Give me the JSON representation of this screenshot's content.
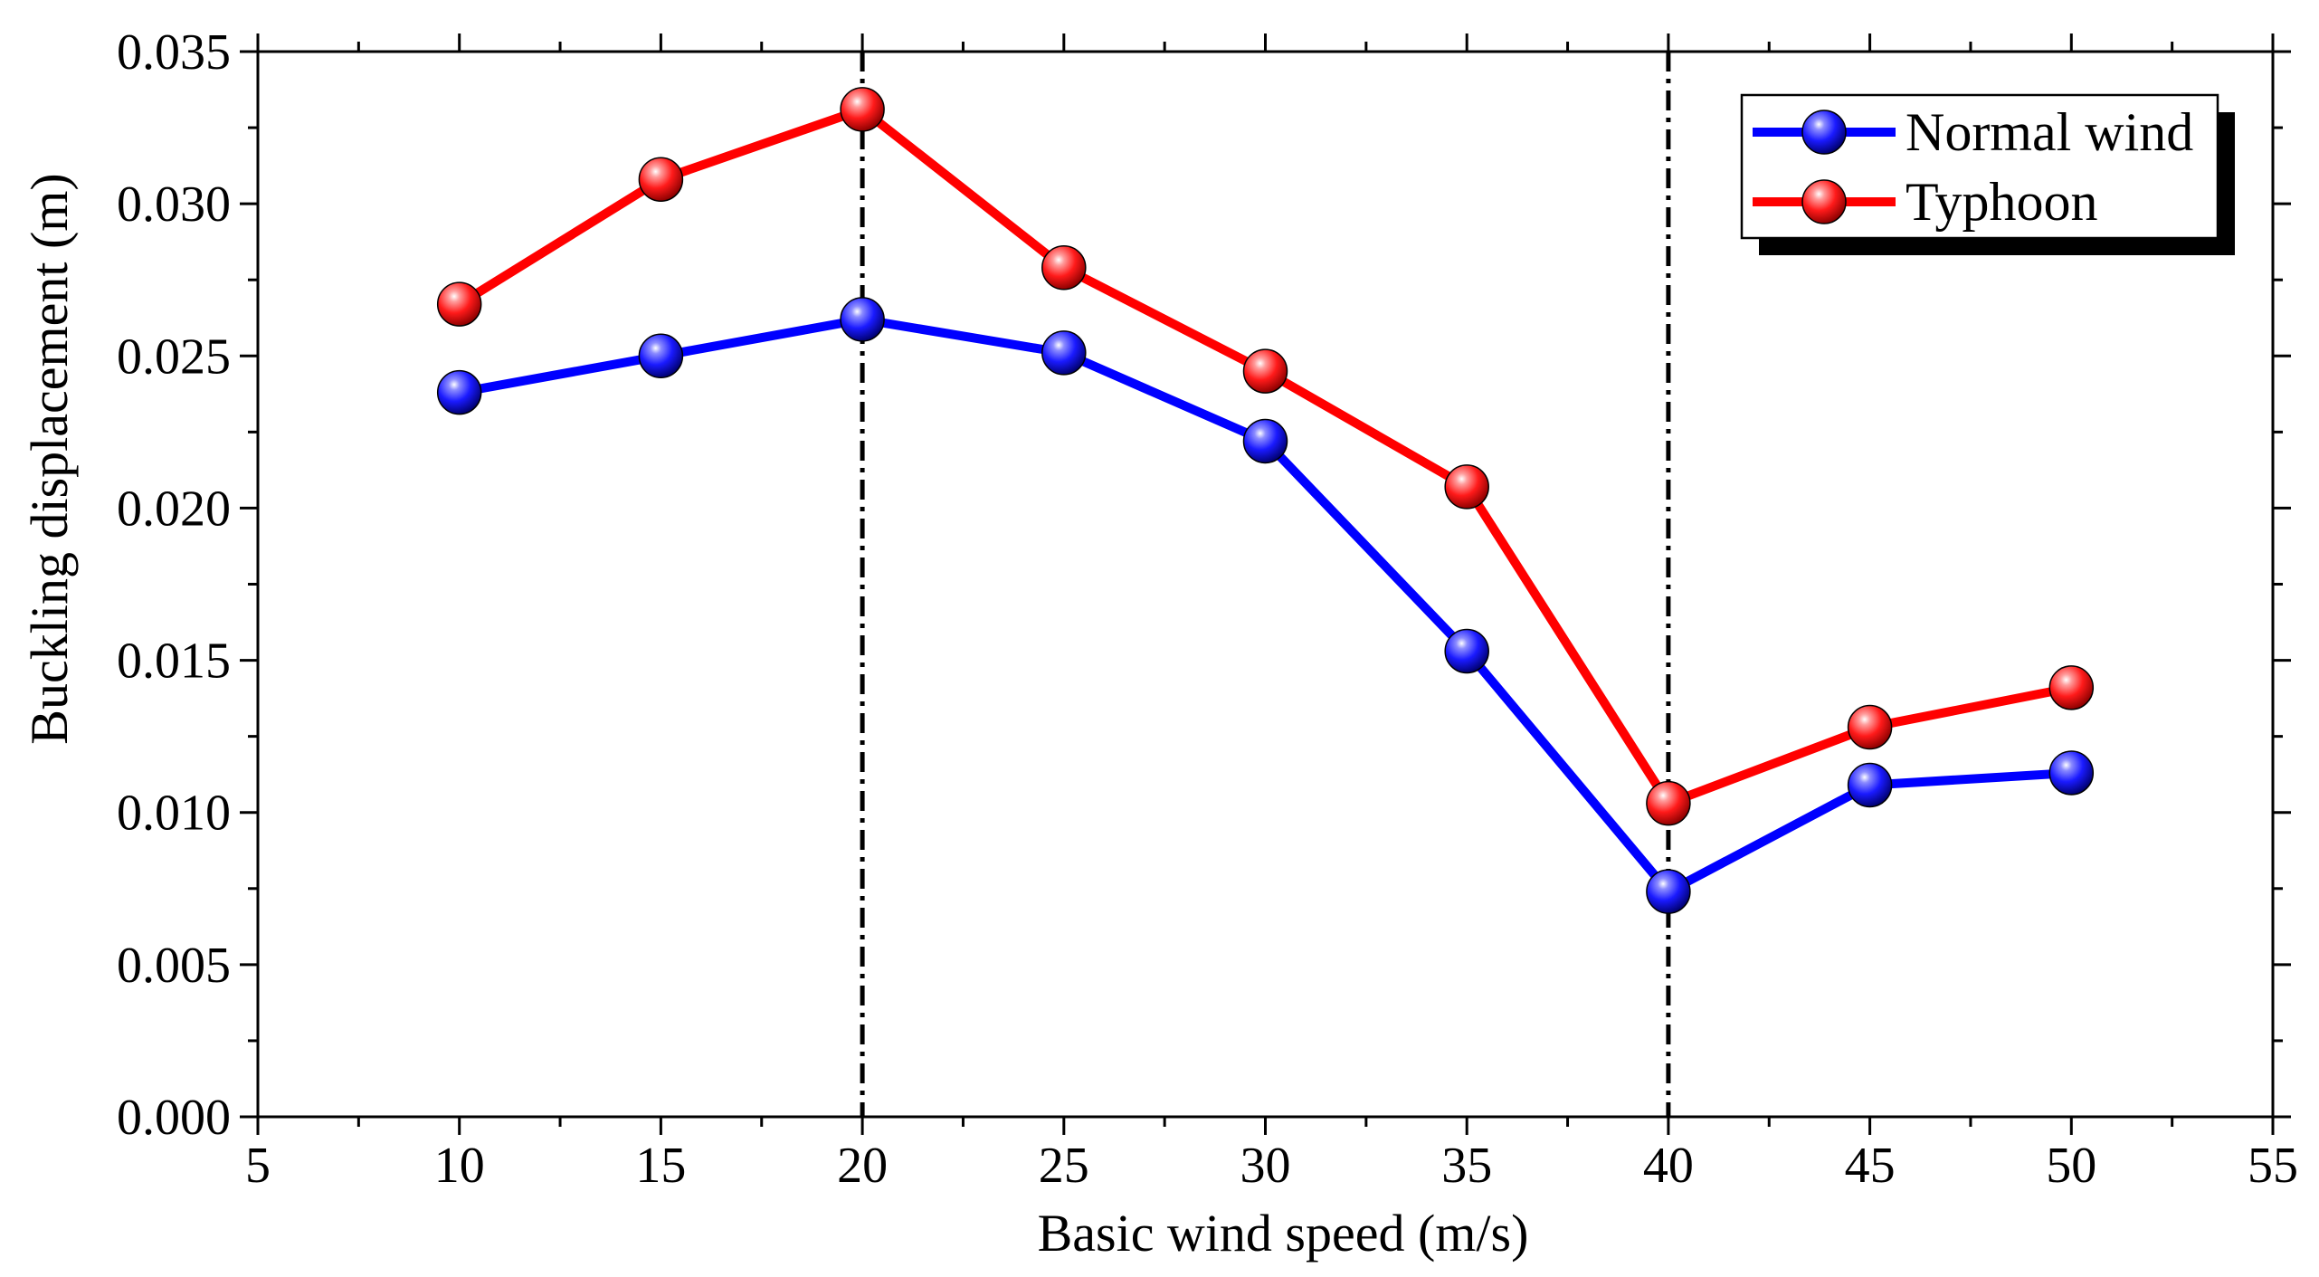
{
  "chart_data": {
    "type": "line",
    "xlabel": "Basic wind speed (m/s)",
    "ylabel": "Buckling displacement (m)",
    "xlim": [
      5,
      55
    ],
    "ylim": [
      0.0,
      0.035
    ],
    "x_ticks": [
      5,
      10,
      15,
      20,
      25,
      30,
      35,
      40,
      45,
      50,
      55
    ],
    "x_tick_labels": [
      "5",
      "10",
      "15",
      "20",
      "25",
      "30",
      "35",
      "40",
      "45",
      "50",
      "55"
    ],
    "y_ticks": [
      0.0,
      0.005,
      0.01,
      0.015,
      0.02,
      0.025,
      0.03,
      0.035
    ],
    "y_tick_labels": [
      "0.000",
      "0.005",
      "0.010",
      "0.015",
      "0.020",
      "0.025",
      "0.030",
      "0.035"
    ],
    "x": [
      10,
      15,
      20,
      25,
      30,
      35,
      40,
      45,
      50
    ],
    "series": [
      {
        "name": "Normal wind",
        "color": "#0000ff",
        "values": [
          0.0238,
          0.025,
          0.0262,
          0.0251,
          0.0222,
          0.0153,
          0.0074,
          0.0109,
          0.0113
        ]
      },
      {
        "name": "Typhoon",
        "color": "#ff0000",
        "values": [
          0.0267,
          0.0308,
          0.0331,
          0.0279,
          0.0245,
          0.0207,
          0.0103,
          0.0128,
          0.0141
        ]
      }
    ],
    "reference_lines_x": [
      20,
      40
    ],
    "legend_position": "top-right",
    "grid": false
  }
}
